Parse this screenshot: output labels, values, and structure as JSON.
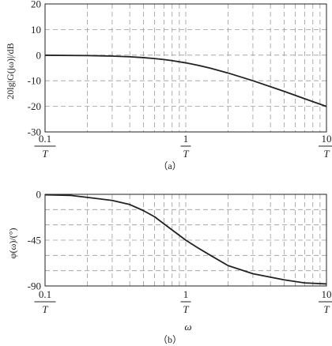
{
  "chart_data": [
    {
      "type": "line",
      "panel": "(a)",
      "caption": "（a）",
      "xscale": "log",
      "xlim": [
        0.1,
        10
      ],
      "xticks": [
        {
          "value": 0.1,
          "num": "0.1",
          "den": "T"
        },
        {
          "value": 1,
          "num": "1",
          "den": "T"
        },
        {
          "value": 10,
          "num": "10",
          "den": "T"
        }
      ],
      "ylabel": "20lg|G(jω)|/dB",
      "ylim": [
        -30,
        20
      ],
      "yticks": [
        20,
        10,
        0,
        -10,
        -20,
        -30
      ],
      "grid": true,
      "series": [
        {
          "x": [
            0.1,
            0.2,
            0.3,
            0.4,
            0.5,
            0.6,
            0.7,
            0.8,
            1.0,
            1.2,
            1.5,
            2.0,
            3.0,
            5.0,
            7.0,
            10.0
          ],
          "y": [
            -0.04,
            -0.17,
            -0.37,
            -0.64,
            -0.97,
            -1.34,
            -1.73,
            -2.15,
            -3.01,
            -3.87,
            -5.11,
            -6.99,
            -10.0,
            -14.15,
            -17.03,
            -20.04
          ]
        }
      ]
    },
    {
      "type": "line",
      "panel": "(b)",
      "caption": "（b）",
      "xscale": "log",
      "xlim": [
        0.1,
        10
      ],
      "xticks": [
        {
          "value": 0.1,
          "num": "0.1",
          "den": "T"
        },
        {
          "value": 1,
          "num": "1",
          "den": "T"
        },
        {
          "value": 10,
          "num": "10",
          "den": "T"
        }
      ],
      "xlabel": "ω",
      "ylabel": "φ(ω)/(°)",
      "ylim": [
        -90,
        0
      ],
      "yticks": [
        0,
        -45,
        -90
      ],
      "grid": true,
      "series": [
        {
          "x": [
            0.1,
            0.15,
            0.2,
            0.3,
            0.4,
            0.5,
            0.6,
            0.7,
            0.8,
            1.0,
            1.2,
            1.5,
            2.0,
            3.0,
            5.0,
            7.0,
            10.0
          ],
          "y": [
            -0.5,
            -1,
            -3,
            -6,
            -10,
            -16,
            -22,
            -29,
            -35,
            -45,
            -52,
            -60,
            -70,
            -78,
            -84,
            -87,
            -88
          ]
        }
      ]
    }
  ]
}
